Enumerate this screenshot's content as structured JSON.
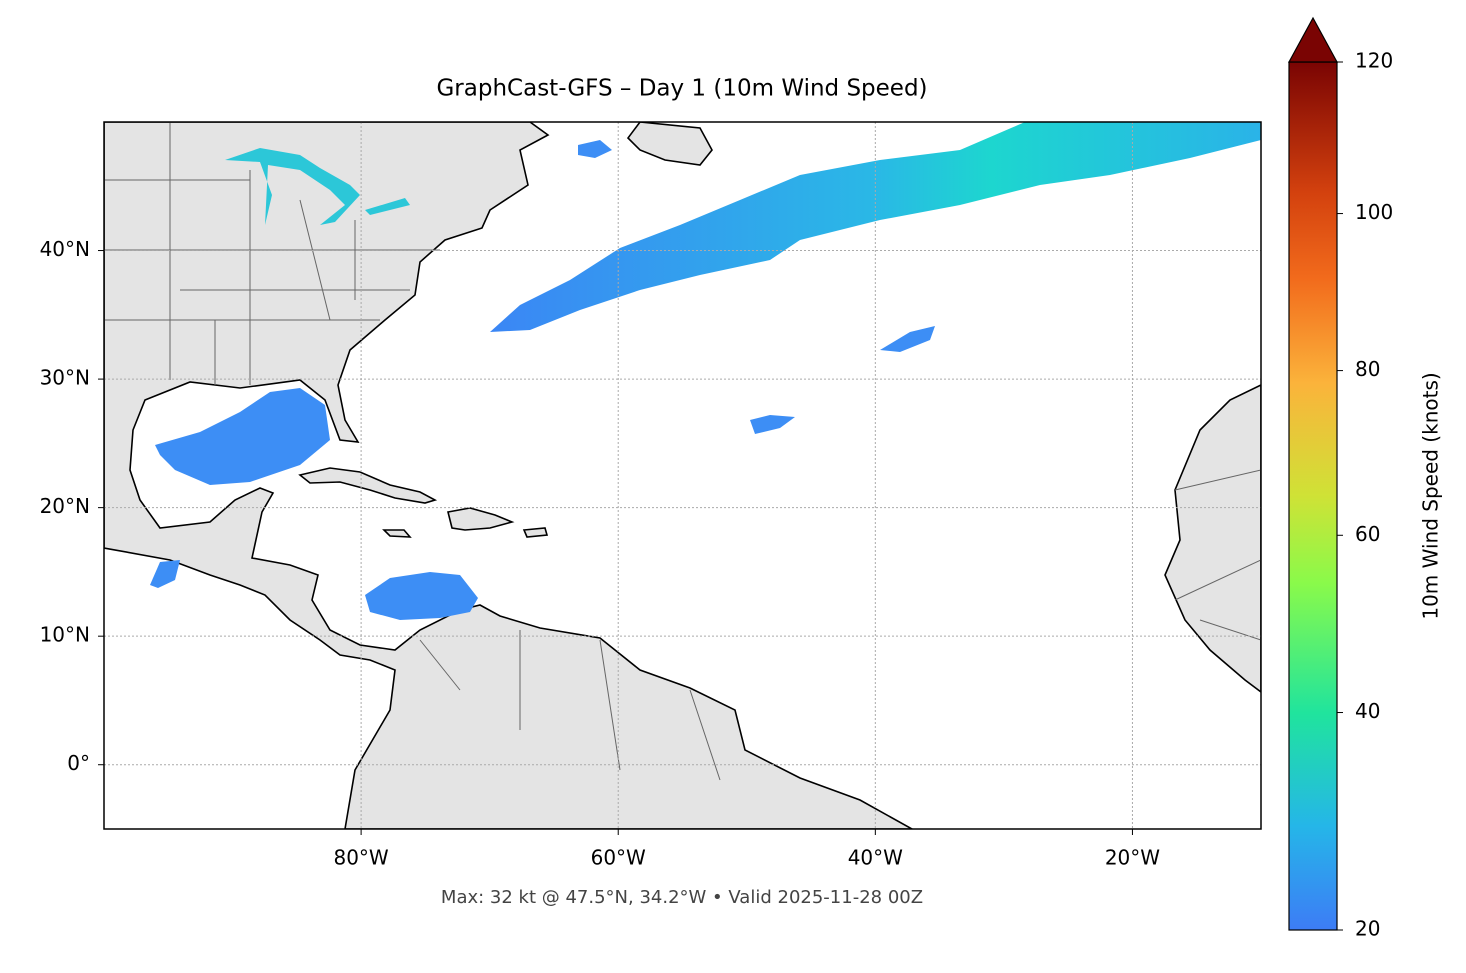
{
  "title": "GraphCast-GFS – Day 1 (10m Wind Speed)",
  "footnote": "Max: 32 kt @ 47.5°N, 34.2°W • Valid 2025-11-28 00Z",
  "map": {
    "xlim": [
      -100,
      -10
    ],
    "ylim": [
      -5,
      50
    ],
    "grid": true,
    "xticks": [
      {
        "value": -80,
        "label": "80°W"
      },
      {
        "value": -60,
        "label": "60°W"
      },
      {
        "value": -40,
        "label": "40°W"
      },
      {
        "value": -20,
        "label": "20°W"
      }
    ],
    "yticks": [
      {
        "value": 0,
        "label": "0°"
      },
      {
        "value": 10,
        "label": "10°N"
      },
      {
        "value": 20,
        "label": "20°N"
      },
      {
        "value": 30,
        "label": "30°N"
      },
      {
        "value": 40,
        "label": "40°N"
      }
    ]
  },
  "colorbar": {
    "label": "10m Wind Speed (knots)",
    "lim": [
      20,
      120
    ],
    "ticks": [
      20,
      40,
      60,
      80,
      100,
      120
    ],
    "gamma": 0.86,
    "extend": "max"
  }
}
